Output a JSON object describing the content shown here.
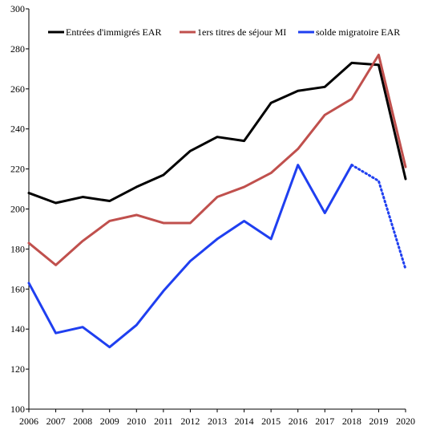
{
  "chart_data": {
    "type": "line",
    "title": "",
    "xlabel": "",
    "ylabel": "",
    "x": [
      2006,
      2007,
      2008,
      2009,
      2010,
      2011,
      2012,
      2013,
      2014,
      2015,
      2016,
      2017,
      2018,
      2019,
      2020
    ],
    "ylim": [
      100,
      300
    ],
    "yticks": [
      100,
      120,
      140,
      160,
      180,
      200,
      220,
      240,
      260,
      280,
      300
    ],
    "grid": false,
    "legend_position": "top",
    "series": [
      {
        "name": "Entrées d'immigrés EAR",
        "color": "#000000",
        "values": [
          208,
          203,
          206,
          204,
          211,
          217,
          229,
          236,
          234,
          253,
          259,
          261,
          273,
          272,
          215
        ]
      },
      {
        "name": "1ers titres de séjour MI",
        "color": "#c0504d",
        "values": [
          183,
          172,
          184,
          194,
          197,
          193,
          193,
          206,
          211,
          218,
          230,
          247,
          255,
          277,
          221
        ]
      },
      {
        "name": "solde migratoire EAR",
        "color": "#1f3ff0",
        "values": [
          163,
          138,
          141,
          131,
          142,
          159,
          174,
          185,
          194,
          185,
          222,
          198,
          222,
          214,
          170
        ],
        "dotted_from_x": 2018
      }
    ]
  }
}
